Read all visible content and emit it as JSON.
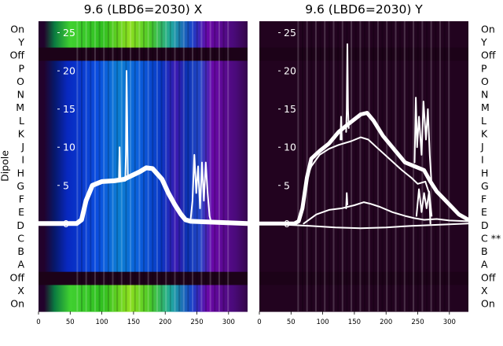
{
  "chart_data": [
    {
      "type": "heatmap",
      "title": "9.6 (LBD6=2030) X",
      "ylabel": "Dipole",
      "x_ticks": [
        0,
        50,
        100,
        150,
        200,
        250,
        300
      ],
      "xlim": [
        0,
        330
      ],
      "y_ticks": [
        0,
        5,
        10,
        15,
        20,
        25
      ],
      "ylim": [
        -11.5,
        26.5
      ],
      "dipole_labels": [
        "On",
        "Y",
        "Off",
        "P",
        "O",
        "N",
        "M",
        "L",
        "K",
        "J",
        "I",
        "H",
        "G",
        "F",
        "E",
        "D",
        "C",
        "B",
        "A",
        "Off",
        "X",
        "On"
      ],
      "series": [
        {
          "values": [
            [
              0,
              0
            ],
            [
              60,
              0
            ],
            [
              68,
              0.5
            ],
            [
              75,
              3
            ],
            [
              85,
              5
            ],
            [
              100,
              5.5
            ],
            [
              120,
              5.6
            ],
            [
              135,
              5.8
            ],
            [
              140,
              6
            ],
            [
              160,
              6.8
            ],
            [
              170,
              7.3
            ],
            [
              180,
              7.2
            ],
            [
              195,
              5.8
            ],
            [
              205,
              4
            ],
            [
              215,
              2.5
            ],
            [
              225,
              1.2
            ],
            [
              232,
              0.5
            ],
            [
              240,
              0.3
            ],
            [
              330,
              0
            ]
          ]
        },
        {
          "values": [
            [
              137,
              5.6
            ],
            [
              138,
              9
            ],
            [
              139,
              20
            ],
            [
              140,
              14
            ],
            [
              141,
              6
            ]
          ]
        },
        {
          "values": [
            [
              127,
              6
            ],
            [
              128,
              10
            ],
            [
              129,
              6
            ]
          ]
        },
        {
          "values": [
            [
              240,
              0.5
            ],
            [
              243,
              3
            ],
            [
              246,
              9
            ],
            [
              249,
              4
            ],
            [
              252,
              7.5
            ],
            [
              255,
              2
            ],
            [
              258,
              8
            ],
            [
              261,
              3
            ],
            [
              264,
              8
            ],
            [
              267,
              4
            ],
            [
              270,
              1
            ],
            [
              273,
              0
            ]
          ]
        }
      ]
    },
    {
      "type": "heatmap",
      "title": "9.6 (LBD6=2030) Y",
      "x_ticks": [
        0,
        50,
        100,
        150,
        200,
        250,
        300
      ],
      "xlim": [
        0,
        330
      ],
      "y_ticks": [
        0,
        5,
        10,
        15,
        20,
        25
      ],
      "ylim": [
        -11.5,
        26.5
      ],
      "dipole_labels": [
        "On",
        "Y",
        "Off",
        "P",
        "O",
        "N",
        "M",
        "L",
        "K",
        "J",
        "I",
        "H",
        "G",
        "F",
        "E",
        "D",
        "C **",
        "B",
        "A",
        "Off",
        "X",
        "On"
      ],
      "series": [
        {
          "values": [
            [
              0,
              0
            ],
            [
              55,
              0
            ],
            [
              62,
              0.3
            ],
            [
              68,
              2
            ],
            [
              75,
              6
            ],
            [
              82,
              8.5
            ],
            [
              95,
              9.5
            ],
            [
              110,
              10.5
            ],
            [
              125,
              12
            ],
            [
              140,
              13
            ],
            [
              160,
              14.3
            ],
            [
              170,
              14.5
            ],
            [
              180,
              13.5
            ],
            [
              195,
              11.5
            ],
            [
              215,
              9.5
            ],
            [
              230,
              8
            ],
            [
              245,
              7.5
            ],
            [
              260,
              7
            ],
            [
              270,
              5.5
            ],
            [
              280,
              4.2
            ],
            [
              300,
              2.5
            ],
            [
              315,
              1.2
            ],
            [
              330,
              0.5
            ]
          ]
        },
        {
          "values": [
            [
              0,
              0
            ],
            [
              55,
              0
            ],
            [
              62,
              0.3
            ],
            [
              68,
              2
            ],
            [
              75,
              6
            ],
            [
              82,
              7.5
            ],
            [
              95,
              9
            ],
            [
              110,
              9.8
            ],
            [
              125,
              10.3
            ],
            [
              145,
              10.8
            ],
            [
              160,
              11.3
            ],
            [
              172,
              11
            ],
            [
              185,
              10
            ],
            [
              205,
              8.5
            ],
            [
              225,
              7
            ],
            [
              240,
              6
            ],
            [
              250,
              5.2
            ],
            [
              262,
              5.5
            ],
            [
              268,
              4
            ],
            [
              270,
              0
            ]
          ]
        },
        {
          "values": [
            [
              70,
              0
            ],
            [
              90,
              1.2
            ],
            [
              110,
              1.8
            ],
            [
              130,
              2
            ],
            [
              150,
              2.4
            ],
            [
              165,
              2.8
            ],
            [
              175,
              2.6
            ],
            [
              190,
              2.2
            ],
            [
              210,
              1.5
            ],
            [
              230,
              1
            ],
            [
              245,
              0.7
            ],
            [
              260,
              0.5
            ],
            [
              280,
              0.6
            ],
            [
              300,
              0.4
            ],
            [
              330,
              0.3
            ]
          ]
        },
        {
          "values": [
            [
              0,
              0
            ],
            [
              80,
              -0.3
            ],
            [
              120,
              -0.5
            ],
            [
              160,
              -0.6
            ],
            [
              200,
              -0.5
            ],
            [
              240,
              -0.3
            ],
            [
              300,
              -0.1
            ],
            [
              330,
              0
            ]
          ]
        },
        {
          "values": [
            [
              137,
              12
            ],
            [
              138,
              15
            ],
            [
              139,
              23.5
            ],
            [
              140,
              15
            ],
            [
              141,
              12.5
            ]
          ]
        },
        {
          "values": [
            [
              137,
              2
            ],
            [
              138,
              4
            ],
            [
              139,
              2.5
            ]
          ]
        },
        {
          "values": [
            [
              128,
              11
            ],
            [
              129,
              14
            ],
            [
              130,
              11
            ]
          ]
        },
        {
          "values": [
            [
              245,
              8
            ],
            [
              247,
              16.5
            ],
            [
              249,
              10
            ],
            [
              252,
              14
            ],
            [
              256,
              9
            ],
            [
              259,
              16
            ],
            [
              263,
              11
            ],
            [
              266,
              15
            ],
            [
              269,
              9
            ],
            [
              272,
              5
            ]
          ]
        },
        {
          "values": [
            [
              248,
              1
            ],
            [
              252,
              4.5
            ],
            [
              256,
              1.5
            ],
            [
              260,
              4
            ],
            [
              264,
              2
            ],
            [
              268,
              4.2
            ],
            [
              272,
              1
            ]
          ]
        }
      ]
    }
  ]
}
